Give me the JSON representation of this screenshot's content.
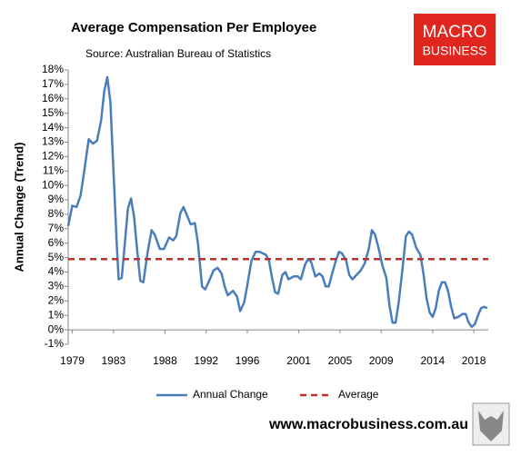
{
  "chart_data": {
    "type": "line",
    "title": "Average Compensation Per Employee",
    "subtitle": "Source: Australian Bureau of Statistics",
    "ylabel": "Annual Change (Trend)",
    "x": [
      1978.6,
      1979.0,
      1979.4,
      1979.8,
      1980.2,
      1980.6,
      1981.0,
      1981.4,
      1981.8,
      1982.1,
      1982.4,
      1982.7,
      1983.0,
      1983.3,
      1983.5,
      1983.8,
      1984.1,
      1984.4,
      1984.7,
      1985.0,
      1985.3,
      1985.6,
      1985.9,
      1986.3,
      1986.7,
      1987.0,
      1987.5,
      1987.9,
      1988.4,
      1988.8,
      1989.1,
      1989.5,
      1989.8,
      1990.1,
      1990.5,
      1990.9,
      1991.2,
      1991.6,
      1991.9,
      1992.3,
      1992.7,
      1993.1,
      1993.5,
      1993.8,
      1994.1,
      1994.6,
      1995.0,
      1995.3,
      1995.7,
      1996.0,
      1996.4,
      1996.8,
      1997.2,
      1997.8,
      1998.1,
      1998.4,
      1998.7,
      1999.0,
      1999.4,
      1999.7,
      2000.0,
      2000.5,
      2000.9,
      2001.2,
      2001.6,
      2001.9,
      2002.2,
      2002.6,
      2003.0,
      2003.3,
      2003.6,
      2003.9,
      2004.2,
      2004.6,
      2004.9,
      2005.2,
      2005.6,
      2005.9,
      2006.2,
      2006.6,
      2007.0,
      2007.4,
      2007.8,
      2008.1,
      2008.4,
      2008.8,
      2009.1,
      2009.5,
      2009.8,
      2010.1,
      2010.4,
      2010.7,
      2011.1,
      2011.4,
      2011.7,
      2012.0,
      2012.4,
      2012.8,
      2013.1,
      2013.4,
      2013.7,
      2014.0,
      2014.3,
      2014.6,
      2014.9,
      2015.2,
      2015.5,
      2015.8,
      2016.1,
      2016.5,
      2016.9,
      2017.2,
      2017.5,
      2017.8,
      2018.1,
      2018.4,
      2018.7,
      2019.0,
      2019.3
    ],
    "series": [
      {
        "name": "Annual Change",
        "color": "#4a7ebb",
        "values": [
          7.2,
          8.6,
          8.5,
          9.3,
          11.2,
          13.2,
          12.9,
          13.1,
          14.5,
          16.5,
          17.5,
          15.8,
          11,
          6.2,
          3.5,
          3.6,
          6,
          8.4,
          9.1,
          7.8,
          5.5,
          3.4,
          3.3,
          5.3,
          6.9,
          6.6,
          5.6,
          5.6,
          6.4,
          6.2,
          6.5,
          8.1,
          8.5,
          8.0,
          7.3,
          7.4,
          6.0,
          3.0,
          2.8,
          3.4,
          4.1,
          4.3,
          3.9,
          3.0,
          2.4,
          2.7,
          2.3,
          1.3,
          1.9,
          3.1,
          4.8,
          5.4,
          5.4,
          5.2,
          4.8,
          3.6,
          2.6,
          2.5,
          3.8,
          4.0,
          3.5,
          3.7,
          3.7,
          3.5,
          4.5,
          4.9,
          4.7,
          3.7,
          3.9,
          3.7,
          3.0,
          3.0,
          3.8,
          4.8,
          5.4,
          5.3,
          4.8,
          3.8,
          3.5,
          3.8,
          4.1,
          4.6,
          5.6,
          6.9,
          6.6,
          5.5,
          4.5,
          3.6,
          1.7,
          0.5,
          0.5,
          1.9,
          4.4,
          6.5,
          6.8,
          6.6,
          5.7,
          5.2,
          3.9,
          2.2,
          1.2,
          0.9,
          1.5,
          2.7,
          3.3,
          3.3,
          2.7,
          1.6,
          0.8,
          0.9,
          1.1,
          1.1,
          0.5,
          0.2,
          0.4,
          1.0,
          1.5,
          1.6,
          1.5
        ]
      }
    ],
    "reference_lines": [
      {
        "name": "Average",
        "value": 4.9,
        "color": "#c0302b"
      }
    ],
    "xlim": [
      1978.6,
      2019.4
    ],
    "xticks": [
      1979,
      1983,
      1988,
      1992,
      1996,
      2001,
      2005,
      2009,
      2014,
      2018
    ],
    "ylim": [
      -1,
      18
    ],
    "yticks": [
      {
        "value": -1,
        "label": "-1%"
      },
      {
        "value": 0,
        "label": "0%"
      },
      {
        "value": 1,
        "label": "1%"
      },
      {
        "value": 2,
        "label": "2%"
      },
      {
        "value": 3,
        "label": "3%"
      },
      {
        "value": 4,
        "label": "4%"
      },
      {
        "value": 5,
        "label": "5%"
      },
      {
        "value": 6,
        "label": "6%"
      },
      {
        "value": 7,
        "label": "7%"
      },
      {
        "value": 8,
        "label": "8%"
      },
      {
        "value": 9,
        "label": "9%"
      },
      {
        "value": 10,
        "label": "10%"
      },
      {
        "value": 11,
        "label": "11%"
      },
      {
        "value": 12,
        "label": "12%"
      },
      {
        "value": 13,
        "label": "13%"
      },
      {
        "value": 14,
        "label": "14%"
      },
      {
        "value": 15,
        "label": "15%"
      },
      {
        "value": 16,
        "label": "16%"
      },
      {
        "value": 17,
        "label": "17%"
      },
      {
        "value": 18,
        "label": "18%"
      }
    ],
    "grid": false
  },
  "logo": {
    "line1": "MACRO",
    "line2": "BUSINESS"
  },
  "footer": "www.macrobusiness.com.au"
}
